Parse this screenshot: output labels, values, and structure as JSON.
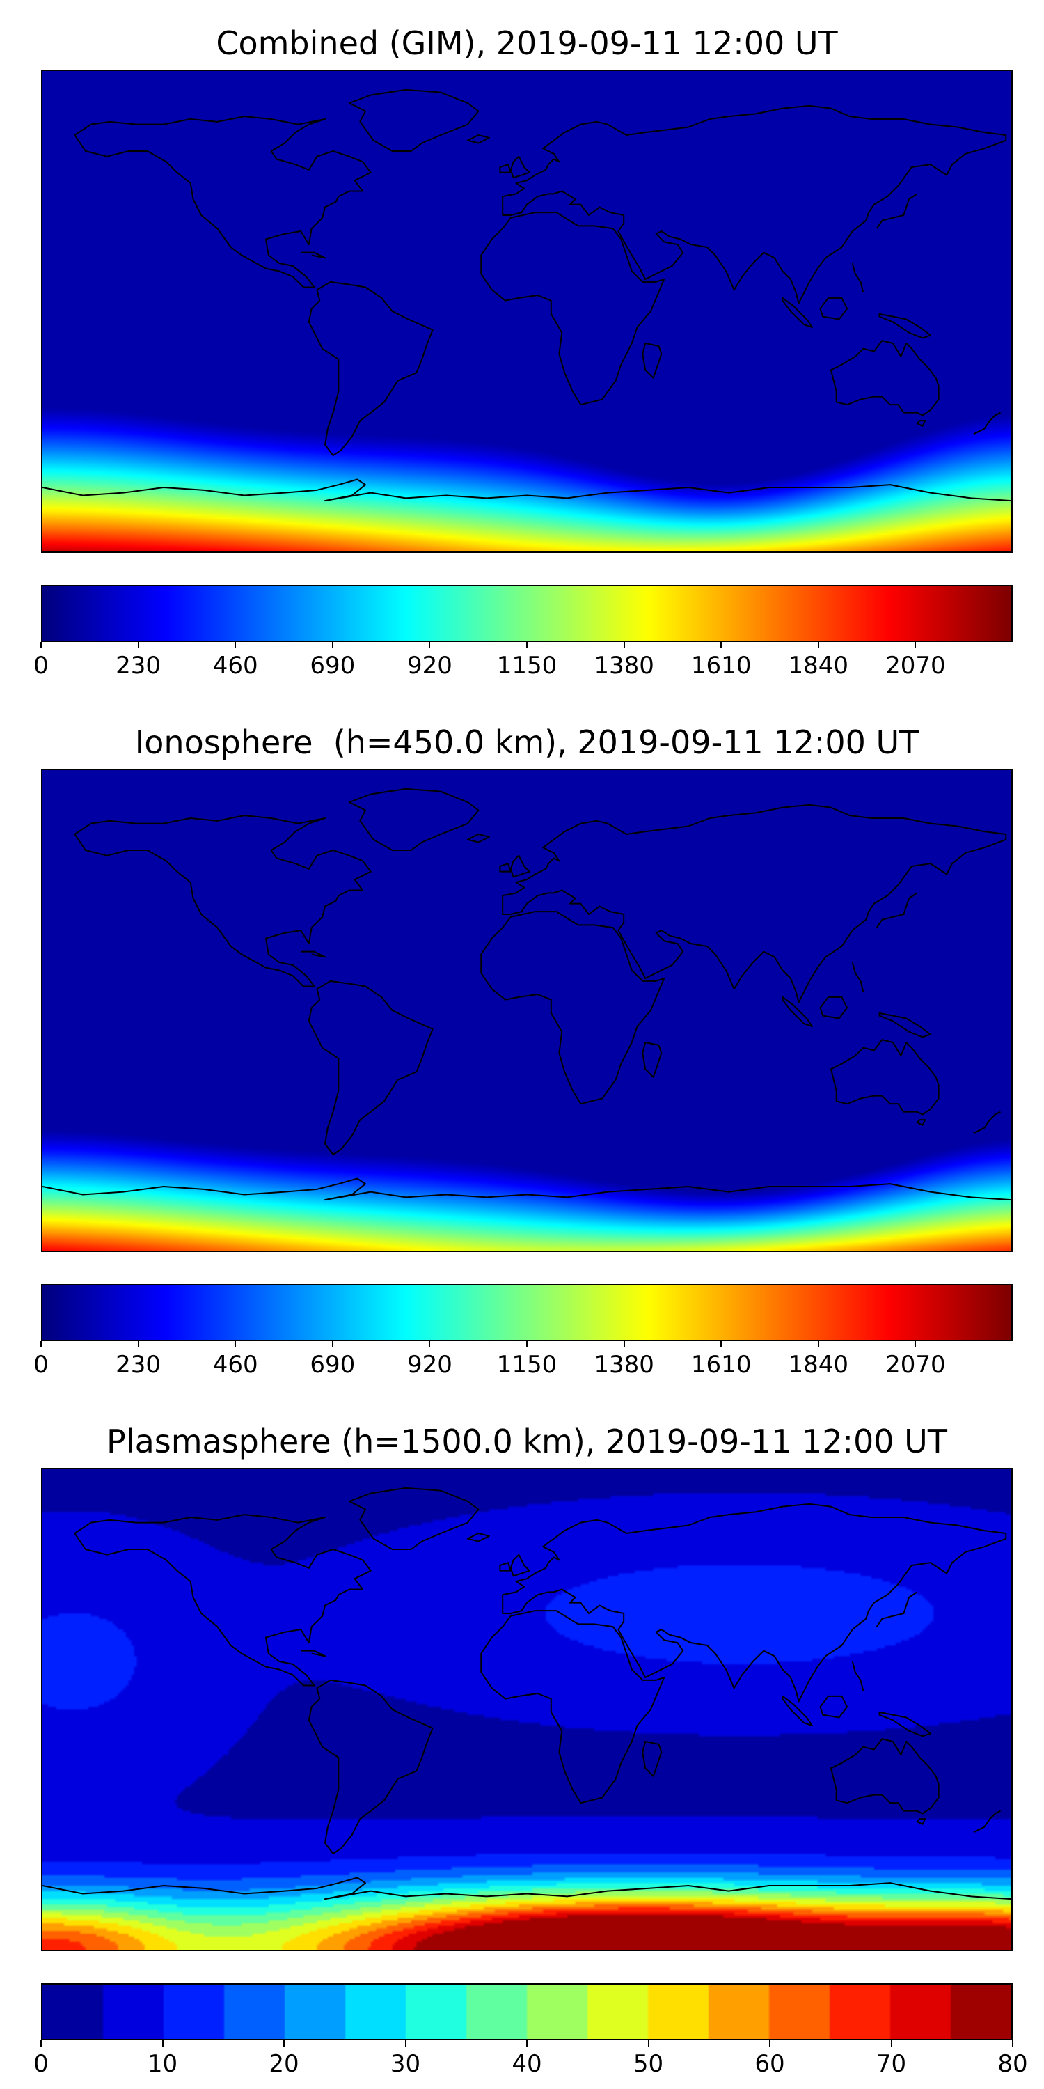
{
  "figure": {
    "background": "#ffffff",
    "colormap": "jet",
    "map_outline_color": "#000000"
  },
  "panels": [
    {
      "id": "combined",
      "title": "Combined (GIM), 2019-09-11 12:00 UT",
      "colorbar": {
        "min": 0,
        "max": 2300,
        "ticks": [
          0,
          230,
          460,
          690,
          920,
          1150,
          1380,
          1610,
          1840,
          2070
        ],
        "style": "continuous",
        "colormap": "jet"
      }
    },
    {
      "id": "ionosphere",
      "title": "Ionosphere  (h=450.0 km), 2019-09-11 12:00 UT",
      "colorbar": {
        "min": 0,
        "max": 2300,
        "ticks": [
          0,
          230,
          460,
          690,
          920,
          1150,
          1380,
          1610,
          1840,
          2070
        ],
        "style": "continuous",
        "colormap": "jet"
      }
    },
    {
      "id": "plasmasphere",
      "title": "Plasmasphere (h=1500.0 km), 2019-09-11 12:00 UT",
      "colorbar": {
        "min": 0,
        "max": 80,
        "ticks": [
          0,
          10,
          20,
          30,
          40,
          50,
          60,
          70,
          80
        ],
        "style": "discrete",
        "levels": 16,
        "colormap": "jet"
      }
    }
  ],
  "chart_data": [
    {
      "type": "heatmap",
      "title": "Combined (GIM), 2019-09-11 12:00 UT",
      "projection": "equirectangular world map with coastlines",
      "xlim": [
        -180,
        180
      ],
      "ylim": [
        -90,
        90
      ],
      "value_range": [
        0,
        2300
      ],
      "colorbar_ticks": [
        0,
        230,
        460,
        690,
        920,
        1150,
        1380,
        1610,
        1840,
        2070
      ],
      "colormap": "jet",
      "pattern": "Low values (dark blue) over most of the globe; intense auroral/high-latitude band near the southern edge, strongest (dark red) at lower-left and lower-right, weaker (yellow-green dip) near 60E-120E",
      "approx_grid": {
        "lons": [
          -180,
          -120,
          -60,
          0,
          60,
          120,
          180
        ],
        "lats": [
          75,
          45,
          15,
          -15,
          -45,
          -65,
          -80
        ],
        "values": [
          [
            90,
            90,
            90,
            90,
            90,
            90,
            90
          ],
          [
            80,
            80,
            80,
            80,
            80,
            80,
            80
          ],
          [
            90,
            90,
            90,
            90,
            90,
            90,
            90
          ],
          [
            110,
            110,
            110,
            110,
            110,
            110,
            110
          ],
          [
            260,
            240,
            230,
            230,
            200,
            170,
            260
          ],
          [
            1250,
            1050,
            950,
            900,
            650,
            420,
            1250
          ],
          [
            2150,
            1900,
            1750,
            1650,
            1450,
            1150,
            2150
          ]
        ]
      },
      "field_model": {
        "type": "auroral_band",
        "base": 0.04,
        "band_top": 0.76,
        "dip_x": 0.7,
        "dip_amp": 0.1,
        "dip_w": 0.015,
        "left_rise": 0.06,
        "right_rise": 0.05,
        "vb_max": 0.97,
        "vb_dip": 0.3,
        "vb_dip_x": 0.62,
        "vb_dip_w": 0.06,
        "gamma": 1.2
      }
    },
    {
      "type": "heatmap",
      "title": "Ionosphere  (h=450.0 km), 2019-09-11 12:00 UT",
      "projection": "equirectangular world map with coastlines",
      "xlim": [
        -180,
        180
      ],
      "ylim": [
        -90,
        90
      ],
      "value_range": [
        0,
        2300
      ],
      "colorbar_ticks": [
        0,
        230,
        460,
        690,
        920,
        1150,
        1380,
        1610,
        1840,
        2070
      ],
      "colormap": "jet",
      "pattern": "Same as combined but band sits lower/thinner; dark blue dominates; red concentrated at bottom-left and bottom-right corners",
      "approx_grid": {
        "lons": [
          -180,
          -120,
          -60,
          0,
          60,
          120,
          180
        ],
        "lats": [
          75,
          45,
          15,
          -15,
          -45,
          -65,
          -80
        ],
        "values": [
          [
            70,
            70,
            70,
            70,
            70,
            70,
            70
          ],
          [
            60,
            60,
            60,
            60,
            60,
            60,
            60
          ],
          [
            80,
            80,
            80,
            80,
            80,
            80,
            80
          ],
          [
            90,
            90,
            90,
            90,
            90,
            90,
            90
          ],
          [
            180,
            170,
            160,
            160,
            140,
            120,
            180
          ],
          [
            800,
            700,
            650,
            600,
            420,
            300,
            800
          ],
          [
            2050,
            1800,
            1600,
            1500,
            1300,
            1050,
            2050
          ]
        ]
      },
      "field_model": {
        "type": "auroral_band",
        "base": 0.035,
        "band_top": 0.8,
        "dip_x": 0.7,
        "dip_amp": 0.08,
        "dip_w": 0.02,
        "left_rise": 0.05,
        "right_rise": 0.04,
        "vb_max": 0.96,
        "vb_dip": 0.35,
        "vb_dip_x": 0.55,
        "vb_dip_w": 0.08,
        "gamma": 1.2
      }
    },
    {
      "type": "heatmap",
      "title": "Plasmasphere (h=1500.0 km), 2019-09-11 12:00 UT",
      "projection": "equirectangular world map with coastlines, filled discrete contours",
      "xlim": [
        -180,
        180
      ],
      "ylim": [
        -90,
        90
      ],
      "value_range": [
        0,
        80
      ],
      "colorbar_ticks": [
        0,
        10,
        20,
        30,
        40,
        50,
        60,
        70,
        80
      ],
      "colormap": "jet",
      "contour_levels": 16,
      "pattern": "Dark blue background; lighter blue patches over Asia/mid-northern latitudes and far-left mid latitudes; nested rainbow contour rings along southern edge peaking dark red (~80) near 40E-100E at bottom",
      "approx_grid": {
        "lons": [
          -180,
          -120,
          -60,
          0,
          60,
          120,
          180
        ],
        "lats": [
          75,
          45,
          15,
          -15,
          -45,
          -60,
          -70,
          -82
        ],
        "values": [
          [
            5,
            5,
            5,
            5,
            5,
            5,
            5
          ],
          [
            6,
            6,
            6,
            10,
            12,
            12,
            8
          ],
          [
            8,
            6,
            6,
            9,
            13,
            11,
            8
          ],
          [
            6,
            5,
            5,
            6,
            7,
            7,
            6
          ],
          [
            8,
            8,
            8,
            10,
            12,
            10,
            8
          ],
          [
            18,
            14,
            14,
            22,
            30,
            26,
            18
          ],
          [
            38,
            26,
            28,
            48,
            62,
            46,
            38
          ],
          [
            52,
            38,
            44,
            66,
            76,
            60,
            52
          ]
        ]
      },
      "field_model": {
        "type": "quantized_blobs",
        "base": 0.055,
        "levels": 16,
        "blobs": [
          [
            0.72,
            0.3,
            0.045,
            0.012,
            0.11
          ],
          [
            0.03,
            0.4,
            0.008,
            0.02,
            0.09
          ],
          [
            0.62,
            1.0,
            0.055,
            0.006,
            1.05
          ],
          [
            0.0,
            1.0,
            0.01,
            0.005,
            0.5
          ],
          [
            1.0,
            1.0,
            0.01,
            0.005,
            0.5
          ]
        ],
        "band": [
          1.0,
          0.01,
          0.25
        ]
      }
    }
  ]
}
